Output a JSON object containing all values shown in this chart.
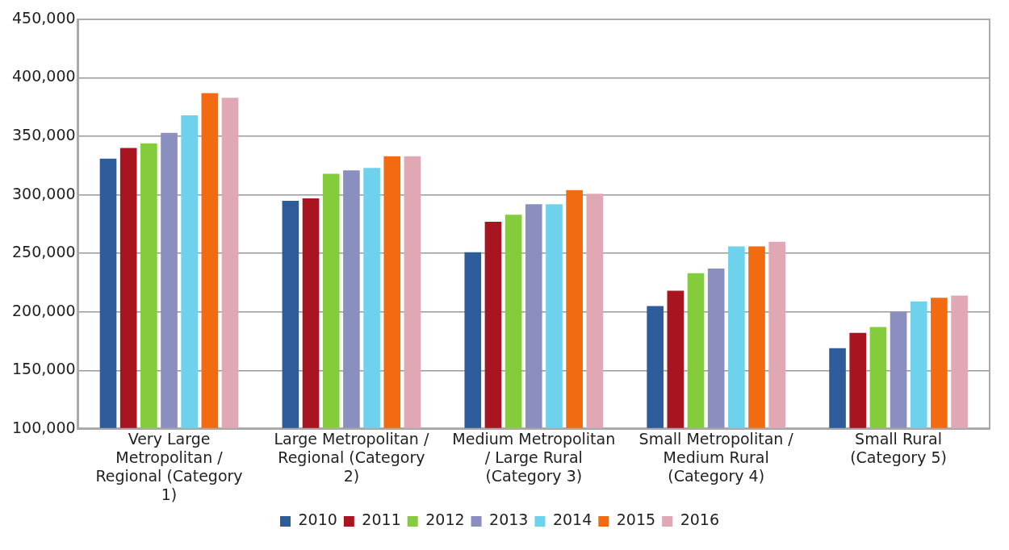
{
  "chart_data": {
    "type": "bar",
    "categories": [
      "Very Large Metropolitan / Regional (Category 1)",
      "Large Metropolitan / Regional (Category 2)",
      "Medium Metropolitan / Large Rural (Category 3)",
      "Small Metropolitan / Medium Rural (Category 4)",
      "Small Rural (Category 5)"
    ],
    "series": [
      {
        "name": "2010",
        "color": "#2e5c9a",
        "values": [
          331000,
          295000,
          251000,
          205000,
          169000
        ]
      },
      {
        "name": "2011",
        "color": "#a81520",
        "values": [
          340000,
          297000,
          277000,
          218000,
          182000
        ]
      },
      {
        "name": "2012",
        "color": "#84cc3c",
        "values": [
          344000,
          318000,
          283000,
          233000,
          187000
        ]
      },
      {
        "name": "2013",
        "color": "#8a8fc0",
        "values": [
          353000,
          321000,
          292000,
          237000,
          200000
        ]
      },
      {
        "name": "2014",
        "color": "#6fd2ec",
        "values": [
          368000,
          323000,
          292000,
          256000,
          209000
        ]
      },
      {
        "name": "2015",
        "color": "#f26b10",
        "values": [
          387000,
          333000,
          304000,
          256000,
          212000
        ]
      },
      {
        "name": "2016",
        "color": "#e0a8b4",
        "values": [
          383000,
          333000,
          301000,
          260000,
          214000
        ]
      }
    ],
    "ylim": [
      100000,
      450000
    ],
    "yticks": [
      {
        "value": 100000,
        "label": "100,000"
      },
      {
        "value": 150000,
        "label": "150,000"
      },
      {
        "value": 200000,
        "label": "200,000"
      },
      {
        "value": 250000,
        "label": "250,000"
      },
      {
        "value": 300000,
        "label": "300,000"
      },
      {
        "value": 350000,
        "label": "350,000"
      },
      {
        "value": 400000,
        "label": "400,000"
      },
      {
        "value": 450000,
        "label": "450,000"
      }
    ],
    "grid": "y",
    "legend": "bottom"
  }
}
